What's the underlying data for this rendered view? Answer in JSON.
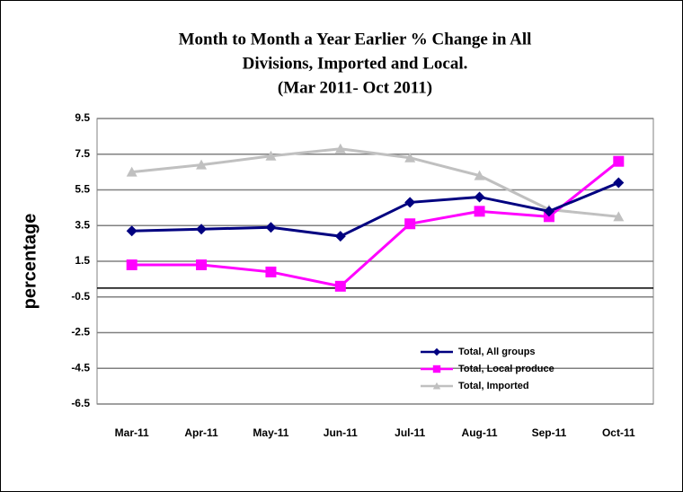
{
  "chart_data": {
    "type": "line",
    "title": [
      "Month to Month a Year Earlier  % Change in All",
      "Divisions, Imported and Local.",
      "(Mar 2011- Oct 2011)"
    ],
    "y_label": "percentage",
    "categories": [
      "Mar-11",
      "Apr-11",
      "May-11",
      "Jun-11",
      "Jul-11",
      "Aug-11",
      "Sep-11",
      "Oct-11"
    ],
    "series": [
      {
        "name": "Total, All groups",
        "color": "#000080",
        "marker": "diamond",
        "values": [
          3.2,
          3.3,
          3.4,
          2.9,
          4.8,
          5.1,
          4.3,
          5.9
        ]
      },
      {
        "name": "Total, Local produce",
        "color": "#ff00ff",
        "marker": "square",
        "values": [
          1.3,
          1.3,
          0.9,
          0.1,
          3.6,
          4.3,
          4.0,
          7.1
        ]
      },
      {
        "name": "Total, Imported",
        "color": "#c0c0c0",
        "marker": "triangle",
        "values": [
          6.5,
          6.9,
          7.4,
          7.8,
          7.3,
          6.3,
          4.4,
          4.0
        ]
      }
    ],
    "ylim": [
      -6.5,
      9.5
    ],
    "yticks": [
      9.5,
      7.5,
      5.5,
      3.5,
      1.5,
      -0.5,
      -2.5,
      -4.5,
      -6.5
    ],
    "grid": true,
    "legend": "lower right"
  }
}
